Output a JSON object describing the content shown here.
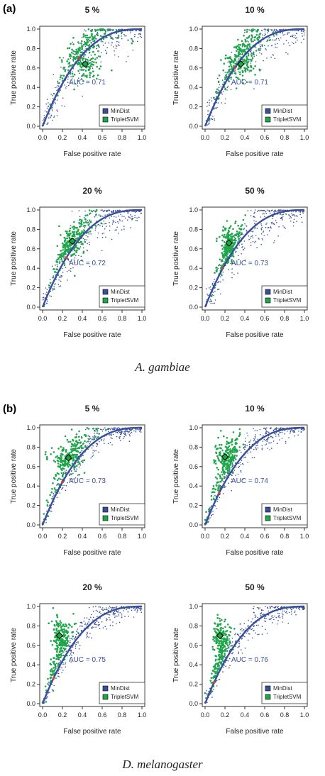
{
  "figure": {
    "panel_a_label": "(a)",
    "panel_b_label": "(b)",
    "species_a": "A. gambiae",
    "species_b": "D. melanogaster"
  },
  "legend": {
    "mindist_label": "MinDist",
    "triplet_label": "TripletSVM",
    "mindist_color": "#3a4f9a",
    "triplet_color": "#1fa64a"
  },
  "axes": {
    "xlabel": "False positive rate",
    "ylabel": "True positive rate",
    "ticks": [
      "0.0",
      "0.2",
      "0.4",
      "0.6",
      "0.8",
      "1.0"
    ]
  },
  "chart_data": [
    {
      "type": "scatter",
      "species": "A. gambiae",
      "title": "5 %",
      "auc_text": "AUC = 0.71",
      "triplet_point": [
        0.43,
        0.64
      ],
      "xlim": [
        0,
        1
      ],
      "ylim": [
        0,
        1
      ]
    },
    {
      "type": "scatter",
      "species": "A. gambiae",
      "title": "10 %",
      "auc_text": "AUC = 0.71",
      "triplet_point": [
        0.36,
        0.64
      ],
      "xlim": [
        0,
        1
      ],
      "ylim": [
        0,
        1
      ]
    },
    {
      "type": "scatter",
      "species": "A. gambiae",
      "title": "20 %",
      "auc_text": "AUC = 0.72",
      "triplet_point": [
        0.3,
        0.68
      ],
      "xlim": [
        0,
        1
      ],
      "ylim": [
        0,
        1
      ]
    },
    {
      "type": "scatter",
      "species": "A. gambiae",
      "title": "50 %",
      "auc_text": "AUC = 0.73",
      "triplet_point": [
        0.24,
        0.66
      ],
      "xlim": [
        0,
        1
      ],
      "ylim": [
        0,
        1
      ]
    },
    {
      "type": "scatter",
      "species": "D. melanogaster",
      "title": "5 %",
      "auc_text": "AUC = 0.73",
      "triplet_point": [
        0.26,
        0.69
      ],
      "xlim": [
        0,
        1
      ],
      "ylim": [
        0,
        1
      ]
    },
    {
      "type": "scatter",
      "species": "D. melanogaster",
      "title": "10 %",
      "auc_text": "AUC = 0.74",
      "triplet_point": [
        0.2,
        0.7
      ],
      "xlim": [
        0,
        1
      ],
      "ylim": [
        0,
        1
      ]
    },
    {
      "type": "scatter",
      "species": "D. melanogaster",
      "title": "20 %",
      "auc_text": "AUC = 0.75",
      "triplet_point": [
        0.17,
        0.7
      ],
      "xlim": [
        0,
        1
      ],
      "ylim": [
        0,
        1
      ]
    },
    {
      "type": "scatter",
      "species": "D. melanogaster",
      "title": "50 %",
      "auc_text": "AUC = 0.76",
      "triplet_point": [
        0.15,
        0.7
      ],
      "xlim": [
        0,
        1
      ],
      "ylim": [
        0,
        1
      ]
    }
  ]
}
